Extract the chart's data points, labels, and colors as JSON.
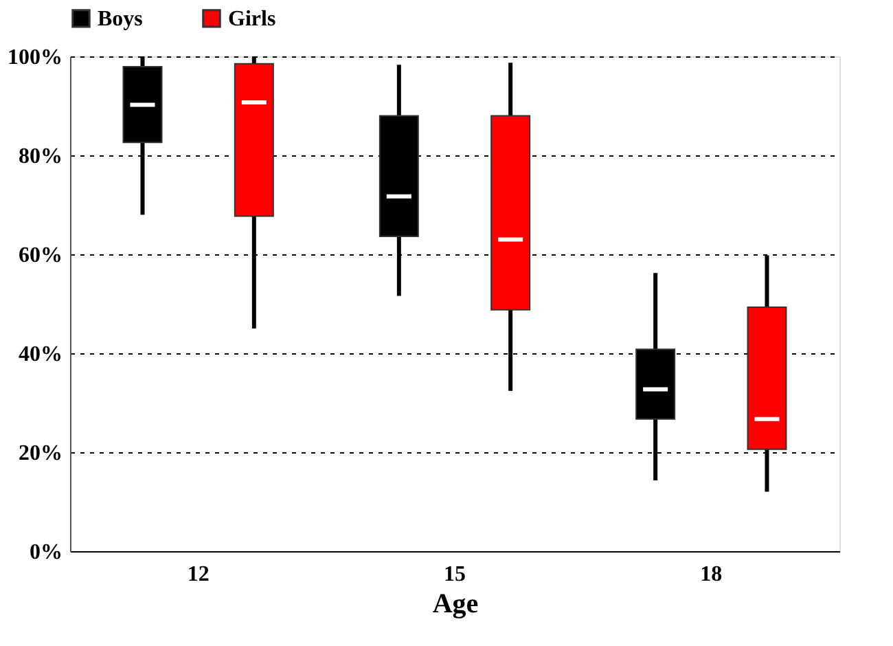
{
  "chart_data": {
    "type": "box",
    "xlabel": "Age",
    "categories": [
      "12",
      "15",
      "18"
    ],
    "series": [
      {
        "name": "Boys",
        "color": "#000000",
        "boxes": [
          {
            "low": 68,
            "q1": 82.6,
            "median": 90.2,
            "q3": 97.9,
            "high": 100
          },
          {
            "low": 51.6,
            "q1": 63.6,
            "median": 71.7,
            "q3": 88,
            "high": 98.3
          },
          {
            "low": 14.3,
            "q1": 26.7,
            "median": 32.7,
            "q3": 40.8,
            "high": 56.2
          }
        ]
      },
      {
        "name": "Girls",
        "color": "#ff0000",
        "boxes": [
          {
            "low": 45,
            "q1": 67.7,
            "median": 90.7,
            "q3": 98.5,
            "high": 100
          },
          {
            "low": 32.4,
            "q1": 48.8,
            "median": 63,
            "q3": 88,
            "high": 98.7
          },
          {
            "low": 12,
            "q1": 20.6,
            "median": 26.7,
            "q3": 49.3,
            "high": 59.8
          }
        ]
      }
    ],
    "ylim": [
      0,
      100
    ],
    "yticks": [
      {
        "value": 0,
        "label": "0%"
      },
      {
        "value": 20,
        "label": "20%"
      },
      {
        "value": 40,
        "label": "40%"
      },
      {
        "value": 60,
        "label": "60%"
      },
      {
        "value": 80,
        "label": "80%"
      },
      {
        "value": 100,
        "label": "100%"
      }
    ],
    "grid": "y",
    "legend": "top"
  }
}
